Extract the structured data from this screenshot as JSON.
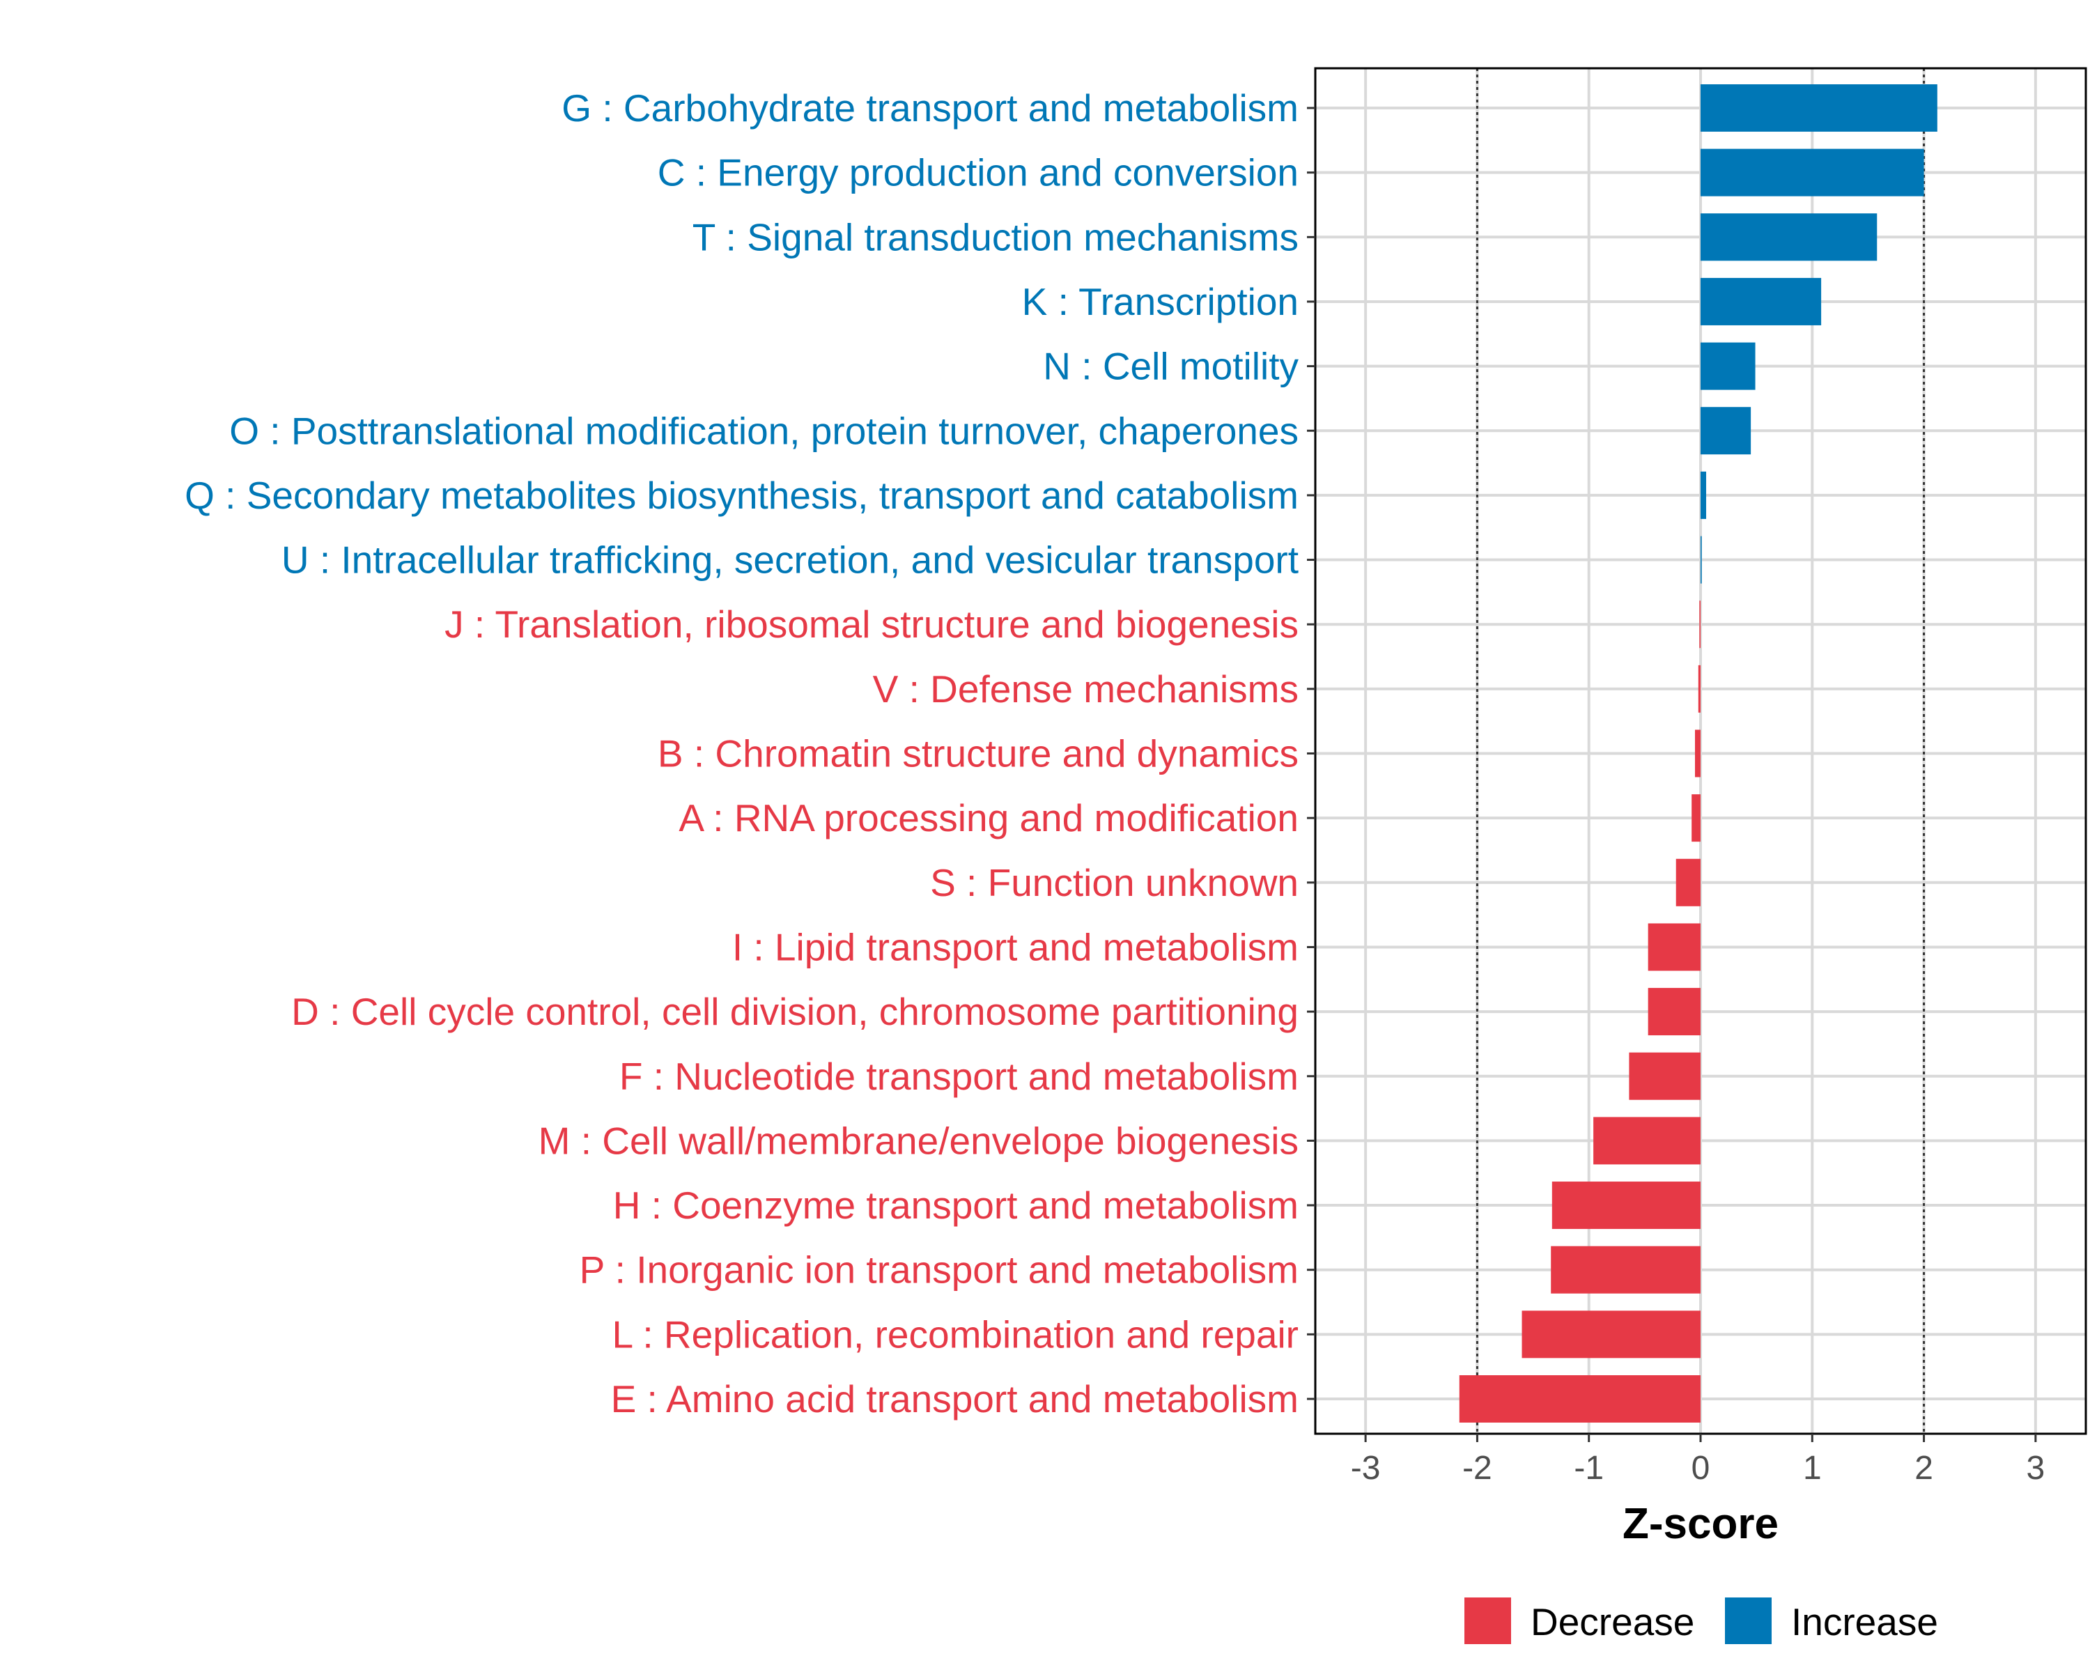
{
  "chart_data": {
    "type": "bar",
    "orientation": "horizontal",
    "xlabel": "Z-score",
    "xlim": [
      -3.45,
      3.45
    ],
    "xticks": [
      -3,
      -2,
      -1,
      0,
      1,
      2,
      3
    ],
    "xtick_labels": [
      "-3",
      "-2",
      "-1",
      "0",
      "1",
      "2",
      "3"
    ],
    "reference_lines": [
      -2,
      2
    ],
    "grid": true,
    "legend_position": "bottom",
    "legend": [
      {
        "label": "Decrease",
        "color": "#E63946"
      },
      {
        "label": "Increase",
        "color": "#0077B6"
      }
    ],
    "categories": [
      "G : Carbohydrate transport and metabolism",
      "C : Energy production and conversion",
      "T : Signal transduction mechanisms",
      "K : Transcription",
      "N : Cell motility",
      "O : Posttranslational modification, protein turnover, chaperones",
      "Q : Secondary metabolites biosynthesis, transport and catabolism",
      "U : Intracellular trafficking, secretion, and vesicular transport",
      "J : Translation, ribosomal structure and biogenesis",
      "V : Defense mechanisms",
      "B : Chromatin structure and dynamics",
      "A : RNA processing and modification",
      "S : Function unknown",
      "I : Lipid transport and metabolism",
      "D : Cell cycle control, cell division, chromosome partitioning",
      "F : Nucleotide transport and metabolism",
      "M : Cell wall/membrane/envelope biogenesis",
      "H : Coenzyme transport and metabolism",
      "P : Inorganic ion transport and metabolism",
      "L : Replication, recombination and repair",
      "E : Amino acid transport and metabolism"
    ],
    "values": [
      2.12,
      2.0,
      1.58,
      1.08,
      0.49,
      0.45,
      0.05,
      0.01,
      -0.01,
      -0.02,
      -0.05,
      -0.08,
      -0.22,
      -0.47,
      -0.47,
      -0.64,
      -0.96,
      -1.33,
      -1.34,
      -1.6,
      -2.16
    ],
    "direction": [
      "Increase",
      "Increase",
      "Increase",
      "Increase",
      "Increase",
      "Increase",
      "Increase",
      "Increase",
      "Decrease",
      "Decrease",
      "Decrease",
      "Decrease",
      "Decrease",
      "Decrease",
      "Decrease",
      "Decrease",
      "Decrease",
      "Decrease",
      "Decrease",
      "Decrease",
      "Decrease"
    ]
  }
}
